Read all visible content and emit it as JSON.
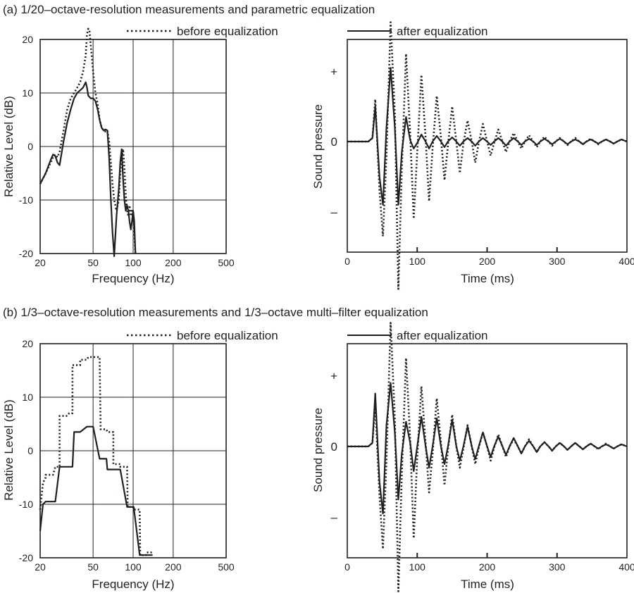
{
  "legend": {
    "before": "before equalization",
    "after": "after equalization"
  },
  "colors": {
    "ink": "#231f20",
    "background": "#ffffff"
  },
  "chart_data": [
    {
      "panel_title": "(a) 1/20–octave-resolution measurements and parametric equalization",
      "type": "line",
      "xlabel": "Frequency (Hz)",
      "ylabel": "Relative Level (dB)",
      "xscale": "log",
      "xlim": [
        20,
        500
      ],
      "ylim": [
        -20,
        20
      ],
      "xticks": [
        "20",
        "50",
        "100",
        "200",
        "500"
      ],
      "xgrid": [
        50,
        100,
        200
      ],
      "yticks": [
        "20",
        "10",
        "0",
        "-10",
        "-20"
      ],
      "grid": true,
      "legend_position": "top",
      "series": [
        {
          "name": "before equalization",
          "style": "dotted",
          "x": [
            20,
            22,
            24,
            25,
            26,
            27,
            28,
            30,
            32,
            34,
            36,
            38,
            40,
            42,
            44,
            45,
            46,
            47,
            48,
            50,
            52,
            54,
            56,
            58,
            60,
            62,
            64,
            66,
            68,
            70,
            72,
            75,
            78,
            80,
            82,
            84,
            86,
            88,
            90,
            92,
            94,
            96,
            98,
            100,
            102,
            104
          ],
          "y": [
            -7,
            -5,
            -3,
            -2,
            -1.5,
            -2,
            -1,
            3,
            7,
            9,
            10,
            11,
            12,
            14,
            17,
            21,
            22,
            21.5,
            19,
            14,
            10,
            8,
            5,
            3.5,
            3,
            2.8,
            3,
            1,
            -3,
            -7,
            -10,
            -12,
            -10,
            -5,
            -2,
            -0.5,
            -4,
            -9,
            -12,
            -13,
            -11,
            -13,
            -12,
            -13,
            -16,
            -20
          ]
        },
        {
          "name": "after equalization",
          "style": "solid",
          "x": [
            20,
            22,
            24,
            25,
            26,
            27,
            28,
            30,
            32,
            34,
            36,
            38,
            40,
            42,
            44,
            45,
            46,
            48,
            50,
            52,
            54,
            56,
            58,
            60,
            62,
            64,
            66,
            68,
            70,
            72,
            75,
            78,
            80,
            82,
            84,
            86,
            88,
            90,
            92,
            94,
            96,
            98,
            100,
            102,
            104
          ],
          "y": [
            -7,
            -5,
            -2.5,
            -1.5,
            -1.8,
            -3,
            -3.5,
            1,
            4.5,
            7,
            9,
            10,
            10.5,
            11,
            12,
            11,
            9.5,
            9,
            9,
            8.5,
            7,
            5,
            3.5,
            3,
            3.2,
            3,
            -2,
            -10,
            -16,
            -20.5,
            -13,
            -8,
            -3,
            -0.5,
            -6,
            -10,
            -12,
            -11,
            -12,
            -14,
            -15.5,
            -14,
            -12,
            -14,
            -20
          ]
        }
      ]
    },
    {
      "type": "line",
      "xlabel": "Time (ms)",
      "ylabel": "Sound pressure",
      "xlim": [
        0,
        400
      ],
      "xticks": [
        "0",
        "100",
        "200",
        "300",
        "400"
      ],
      "yticks": [
        "+",
        "0",
        "–"
      ],
      "ylim": [
        -1,
        1
      ],
      "grid": false,
      "legend_position": "top",
      "series": [
        {
          "name": "before equalization",
          "style": "dotted",
          "x": [
            0,
            30,
            36,
            40,
            46,
            51,
            56,
            62,
            68,
            73,
            78,
            84,
            90,
            95,
            100,
            106,
            112,
            117,
            122,
            128,
            134,
            139,
            144,
            150,
            156,
            161,
            166,
            172,
            178,
            183,
            188,
            194,
            200,
            205,
            210,
            216,
            222,
            227,
            232,
            238,
            244,
            249,
            254,
            260,
            266,
            271,
            276,
            282,
            288,
            293,
            298,
            304,
            310,
            315,
            320,
            326,
            332,
            337,
            342,
            348,
            354,
            359,
            364,
            370,
            376,
            381,
            386,
            392,
            400
          ],
          "y": [
            0,
            0,
            0.05,
            0.6,
            -0.7,
            -1.35,
            -0.2,
            1.7,
            0.4,
            -2.1,
            -0.4,
            1.25,
            0.1,
            -1.1,
            -0.15,
            0.95,
            0.05,
            -0.85,
            -0.1,
            0.65,
            0.05,
            -0.55,
            -0.05,
            0.5,
            0,
            -0.45,
            -0.03,
            0.3,
            0,
            -0.3,
            -0.02,
            0.25,
            0,
            -0.2,
            -0.02,
            0.17,
            0,
            -0.15,
            0,
            0.12,
            0,
            -0.1,
            0,
            0.09,
            0,
            -0.08,
            0,
            0.07,
            0,
            -0.06,
            0,
            0.05,
            0,
            -0.05,
            0,
            0.05,
            0,
            -0.04,
            0,
            0.04,
            0,
            -0.04,
            0,
            0.03,
            0,
            -0.03,
            0,
            0.03,
            0
          ]
        },
        {
          "name": "after equalization",
          "style": "solid",
          "x": [
            0,
            30,
            36,
            40,
            46,
            51,
            56,
            62,
            68,
            73,
            78,
            84,
            90,
            95,
            100,
            106,
            112,
            117,
            122,
            128,
            134,
            139,
            144,
            150,
            156,
            161,
            166,
            172,
            178,
            183,
            188,
            194,
            200,
            205,
            210,
            216,
            222,
            227,
            232,
            238,
            244,
            249,
            254,
            260,
            266,
            271,
            276,
            282,
            288,
            293,
            298,
            304,
            310,
            315,
            320,
            326,
            332,
            337,
            342,
            348,
            354,
            359,
            364,
            370,
            376,
            381,
            386,
            392,
            400
          ],
          "y": [
            0,
            0,
            0.05,
            0.5,
            -0.5,
            -0.9,
            0.2,
            1.05,
            0.2,
            -0.9,
            -0.15,
            0.35,
            0.02,
            -0.1,
            -0.02,
            0.1,
            0,
            -0.1,
            0,
            0.08,
            0,
            -0.08,
            0,
            0.06,
            0,
            -0.06,
            0,
            0.05,
            0,
            -0.06,
            0,
            0.05,
            0,
            -0.05,
            0,
            0.05,
            0,
            -0.06,
            0,
            0.05,
            0,
            -0.05,
            0,
            0.04,
            0,
            -0.05,
            0,
            0.04,
            0,
            -0.04,
            0,
            0.04,
            0,
            -0.04,
            0,
            0.03,
            0,
            -0.04,
            0,
            0.03,
            0,
            -0.03,
            0,
            0.03,
            0,
            -0.03,
            0,
            0.03,
            0
          ]
        }
      ]
    },
    {
      "panel_title": "(b) 1/3–octave-resolution measurements and 1/3–octave multi–filter equalization",
      "type": "line",
      "xlabel": "Frequency (Hz)",
      "ylabel": "Relative Level (dB)",
      "xscale": "log",
      "xlim": [
        20,
        500
      ],
      "ylim": [
        -20,
        20
      ],
      "xticks": [
        "20",
        "50",
        "100",
        "200",
        "500"
      ],
      "xgrid": [
        50,
        100,
        200
      ],
      "yticks": [
        "20",
        "10",
        "0",
        "-10",
        "-20"
      ],
      "grid": true,
      "legend_position": "top",
      "series": [
        {
          "name": "before equalization",
          "style": "dotted",
          "x": [
            20,
            21,
            22,
            22,
            25,
            26,
            28,
            28,
            32,
            33,
            35,
            35,
            40,
            40,
            45,
            46,
            50,
            50,
            56,
            57,
            63,
            64,
            71,
            71,
            80,
            80,
            90,
            91,
            100,
            101,
            112,
            113,
            125,
            126,
            140
          ],
          "y": [
            -11,
            -6,
            -5,
            -4.5,
            -4.5,
            -3,
            -3,
            6.5,
            6.5,
            7,
            7,
            16,
            16,
            17,
            17,
            17.5,
            17.5,
            17.5,
            17.5,
            4,
            4,
            3.5,
            3.5,
            -2.5,
            -2.5,
            -3,
            -3,
            -10.5,
            -10.5,
            -11,
            -11,
            -19.5,
            -19.5,
            -19,
            -19
          ]
        },
        {
          "name": "after equalization",
          "style": "solid",
          "x": [
            20,
            21,
            22,
            25,
            26,
            28,
            32,
            32,
            35,
            36,
            40,
            40,
            45,
            45,
            50,
            50,
            56,
            56,
            63,
            64,
            71,
            71,
            80,
            80,
            90,
            91,
            100,
            101,
            112,
            113,
            125,
            126,
            140
          ],
          "y": [
            -15,
            -10,
            -9.5,
            -9.5,
            -9.5,
            -3,
            -3,
            -3,
            -3,
            3.5,
            3.5,
            3.5,
            4.5,
            4.5,
            4.5,
            4.5,
            -1.5,
            -1.5,
            -1.5,
            -3.5,
            -3.5,
            -3.5,
            -3.5,
            -3.5,
            -10.5,
            -10.5,
            -10.5,
            -10.5,
            -19.5,
            -19.5,
            -19.5,
            -19.5,
            -19.5
          ]
        }
      ]
    },
    {
      "type": "line",
      "xlabel": "Time (ms)",
      "ylabel": "Sound pressure",
      "xlim": [
        0,
        400
      ],
      "xticks": [
        "0",
        "100",
        "200",
        "300",
        "400"
      ],
      "yticks": [
        "+",
        "0",
        "–"
      ],
      "ylim": [
        -1,
        1
      ],
      "grid": false,
      "legend_position": "top",
      "series": [
        {
          "name": "before equalization",
          "style": "dotted",
          "x": [
            0,
            30,
            36,
            40,
            46,
            51,
            56,
            62,
            68,
            73,
            78,
            84,
            90,
            95,
            100,
            106,
            112,
            117,
            122,
            128,
            134,
            139,
            144,
            150,
            156,
            161,
            166,
            172,
            178,
            183,
            188,
            194,
            200,
            205,
            210,
            216,
            222,
            227,
            232,
            238,
            244,
            249,
            254,
            260,
            266,
            271,
            276,
            282,
            288,
            293,
            298,
            304,
            310,
            315,
            320,
            326,
            332,
            337,
            342,
            348,
            354,
            359,
            364,
            370,
            376,
            381,
            386,
            392,
            400
          ],
          "y": [
            0,
            0,
            0.05,
            0.6,
            -0.7,
            -1.45,
            -0.2,
            1.75,
            0.4,
            -2.05,
            -0.4,
            1.25,
            0.1,
            -1.3,
            -0.15,
            0.85,
            0.05,
            -0.65,
            -0.1,
            0.68,
            0.05,
            -0.55,
            -0.05,
            0.45,
            0,
            -0.3,
            -0.03,
            0.3,
            0,
            -0.25,
            -0.02,
            0.2,
            0,
            -0.2,
            -0.02,
            0.17,
            0,
            -0.15,
            0,
            0.1,
            0,
            -0.1,
            0,
            0.1,
            0,
            -0.08,
            0,
            0.06,
            0,
            -0.06,
            0,
            0.05,
            0,
            -0.05,
            0,
            0.05,
            0,
            -0.04,
            0,
            0.04,
            0,
            -0.04,
            0,
            0.04,
            0,
            -0.03,
            0,
            0.03,
            0
          ]
        },
        {
          "name": "after equalization",
          "style": "solid",
          "x": [
            0,
            30,
            36,
            40,
            46,
            51,
            56,
            62,
            68,
            73,
            78,
            84,
            90,
            95,
            100,
            106,
            112,
            117,
            122,
            128,
            134,
            139,
            144,
            150,
            156,
            161,
            166,
            172,
            178,
            183,
            188,
            194,
            200,
            205,
            210,
            216,
            222,
            227,
            232,
            238,
            244,
            249,
            254,
            260,
            266,
            271,
            276,
            282,
            288,
            293,
            298,
            304,
            310,
            315,
            320,
            326,
            332,
            337,
            342,
            348,
            354,
            359,
            364,
            370,
            376,
            381,
            386,
            392,
            400
          ],
          "y": [
            0,
            0,
            0.05,
            0.75,
            -0.5,
            -0.95,
            0.3,
            0.9,
            0.2,
            -0.75,
            -0.1,
            0.35,
            0.05,
            -0.35,
            0,
            0.42,
            0,
            -0.3,
            0,
            0.4,
            0,
            -0.25,
            0,
            0.38,
            0,
            -0.2,
            0,
            0.28,
            0,
            -0.18,
            0,
            0.2,
            0,
            -0.15,
            0,
            0.14,
            0,
            -0.12,
            0,
            0.12,
            0,
            -0.1,
            0,
            0.08,
            0,
            -0.08,
            0,
            0.06,
            0,
            -0.06,
            0,
            0.05,
            0,
            -0.05,
            0,
            0.05,
            0,
            -0.04,
            0,
            0.04,
            0,
            -0.03,
            0,
            0.03,
            0,
            -0.03,
            0,
            0.03,
            0
          ]
        }
      ]
    }
  ]
}
